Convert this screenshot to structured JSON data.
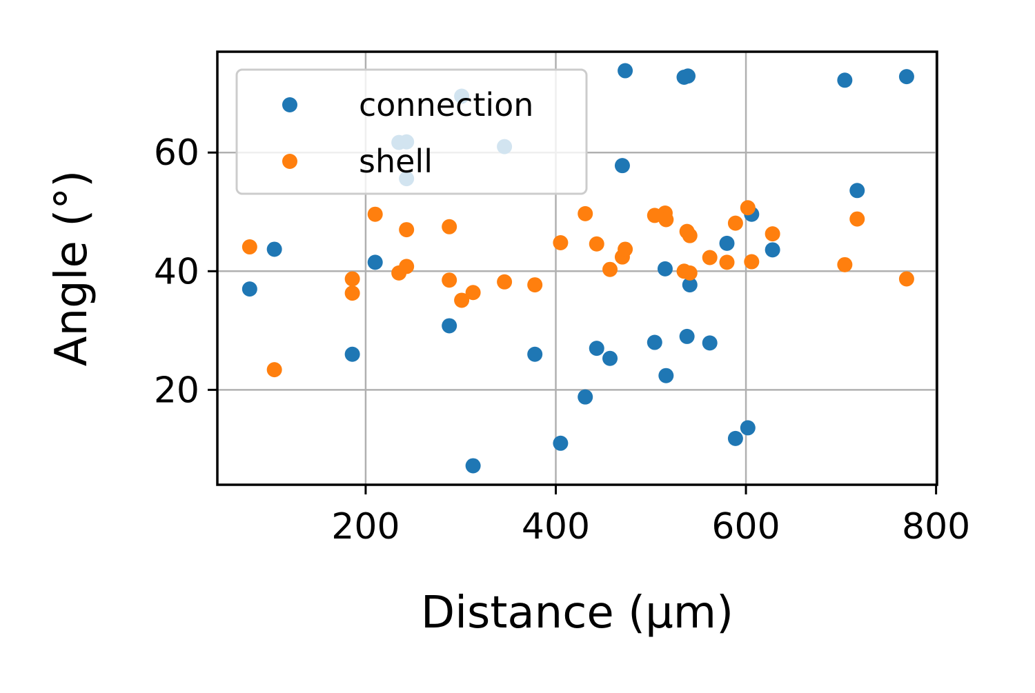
{
  "chart_data": {
    "type": "scatter",
    "title": "",
    "xlabel": "Distance (µm)",
    "ylabel": "Angle (°)",
    "xlim": [
      44,
      801
    ],
    "ylim": [
      4,
      77
    ],
    "xticks": [
      200,
      400,
      600,
      800
    ],
    "yticks": [
      20,
      40,
      60
    ],
    "grid": true,
    "legend": {
      "position": "top-left"
    },
    "series": [
      {
        "name": "connection",
        "color": "#1f77b4",
        "points": [
          [
            78,
            37
          ],
          [
            104,
            43.7
          ],
          [
            186,
            26
          ],
          [
            210,
            41.5
          ],
          [
            235,
            61.7
          ],
          [
            243,
            61.8
          ],
          [
            243,
            55.6
          ],
          [
            288,
            30.8
          ],
          [
            301,
            69.5
          ],
          [
            313,
            7.2
          ],
          [
            346,
            61
          ],
          [
            378,
            26
          ],
          [
            405,
            11
          ],
          [
            431,
            18.8
          ],
          [
            443,
            27
          ],
          [
            457,
            25.3
          ],
          [
            470,
            57.8
          ],
          [
            473,
            73.8
          ],
          [
            504,
            28
          ],
          [
            515,
            40.4
          ],
          [
            516,
            22.4
          ],
          [
            535,
            72.7
          ],
          [
            539,
            72.9
          ],
          [
            538,
            29
          ],
          [
            541,
            37.7
          ],
          [
            562,
            27.9
          ],
          [
            580,
            44.7
          ],
          [
            589,
            11.8
          ],
          [
            602,
            13.6
          ],
          [
            606,
            49.6
          ],
          [
            628,
            43.6
          ],
          [
            704,
            72.2
          ],
          [
            717,
            53.6
          ],
          [
            769,
            72.8
          ]
        ]
      },
      {
        "name": "shell",
        "color": "#ff7f0e",
        "points": [
          [
            78,
            44.1
          ],
          [
            104,
            23.4
          ],
          [
            186,
            38.7
          ],
          [
            186,
            36.3
          ],
          [
            210,
            49.6
          ],
          [
            235,
            39.7
          ],
          [
            243,
            40.8
          ],
          [
            243,
            47
          ],
          [
            288,
            47.5
          ],
          [
            288,
            38.5
          ],
          [
            301,
            35.1
          ],
          [
            313,
            36.4
          ],
          [
            346,
            38.2
          ],
          [
            378,
            37.7
          ],
          [
            405,
            44.8
          ],
          [
            431,
            49.7
          ],
          [
            443,
            44.6
          ],
          [
            457,
            40.3
          ],
          [
            470,
            42.4
          ],
          [
            473,
            43.7
          ],
          [
            504,
            49.4
          ],
          [
            515,
            49.8
          ],
          [
            516,
            48.7
          ],
          [
            535,
            40
          ],
          [
            538,
            46.7
          ],
          [
            541,
            46
          ],
          [
            541,
            39.7
          ],
          [
            562,
            42.3
          ],
          [
            580,
            41.5
          ],
          [
            589,
            48.1
          ],
          [
            602,
            50.7
          ],
          [
            606,
            41.6
          ],
          [
            628,
            46.3
          ],
          [
            704,
            41.1
          ],
          [
            717,
            48.8
          ],
          [
            769,
            38.7
          ]
        ]
      }
    ]
  }
}
